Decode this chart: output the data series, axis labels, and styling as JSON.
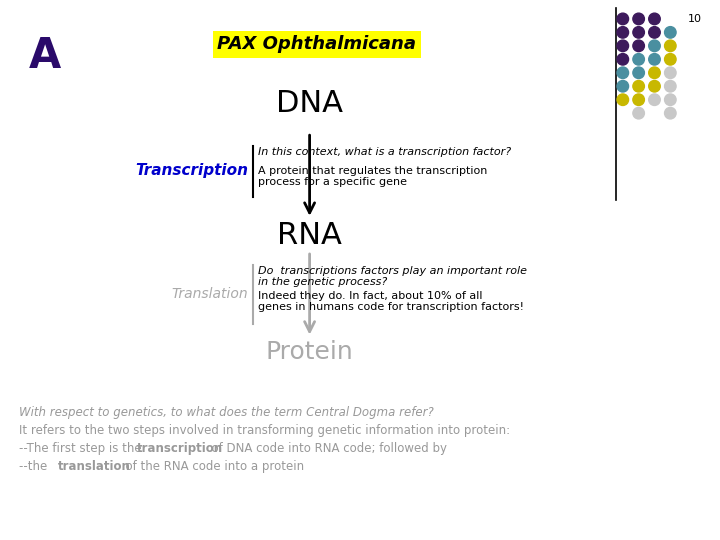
{
  "slide_number": "10",
  "label_A": "A",
  "title": "PAX Ophthalmicana",
  "title_bg": "#FFFF00",
  "dna_label": "DNA",
  "rna_label": "RNA",
  "protein_label": "Protein",
  "transcription_label": "Transcription",
  "translation_label": "Translation",
  "transcription_q": "In this context, what is a transcription factor?",
  "transcription_a": "A protein that regulates the transcription\nprocess for a specific gene",
  "translation_q": "Do  transcriptions factors play an important role\nin the genetic process?",
  "translation_a": "Indeed they do. In fact, about 10% of all\ngenes in humans code for transcription factors!",
  "bottom_italic_part1": "With respect to genetics, to what does the term ",
  "bottom_italic_part2": "Central Dogma refer?",
  "bottom_line2": "It refers to the two steps involved in transforming genetic information into protein:",
  "bottom_line3a": "--The first step is the  ",
  "bottom_line3b": "transcription",
  "bottom_line3c": "  of DNA code into RNA code; followed by",
  "bottom_line4a": "--the  ",
  "bottom_line4b": "translation",
  "bottom_line4c": "  of the RNA code into a protein",
  "dot_colors": [
    [
      "#3d1a5c",
      "#3d1a5c",
      "#3d1a5c",
      null
    ],
    [
      "#3d1a5c",
      "#3d1a5c",
      "#3d1a5c",
      "#4a8fa0"
    ],
    [
      "#3d1a5c",
      "#3d1a5c",
      "#4a8fa0",
      "#c8b800"
    ],
    [
      "#3d1a5c",
      "#4a8fa0",
      "#4a8fa0",
      "#c8b800"
    ],
    [
      "#4a8fa0",
      "#4a8fa0",
      "#c8b800",
      "#c8c8c8"
    ],
    [
      "#4a8fa0",
      "#c8b800",
      "#c8b800",
      "#c8c8c8"
    ],
    [
      "#c8b800",
      "#c8b800",
      "#c8c8c8",
      "#c8c8c8"
    ],
    [
      null,
      "#c8c8c8",
      null,
      "#c8c8c8"
    ]
  ],
  "bg_color": "#ffffff",
  "A_color": "#2a0a6a",
  "transcription_color": "#0000cc",
  "translation_color": "#aaaaaa",
  "protein_color": "#aaaaaa",
  "bottom_text_color": "#999999"
}
